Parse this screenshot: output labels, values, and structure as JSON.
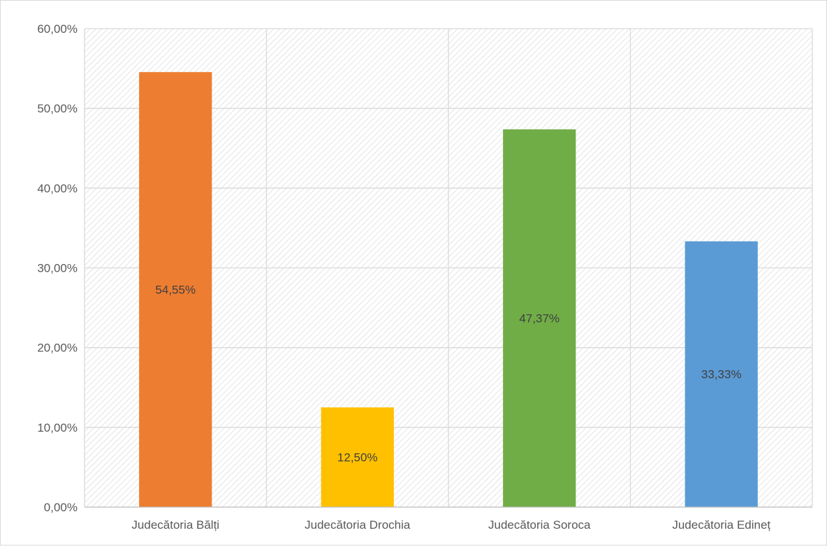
{
  "chart_data": {
    "type": "bar",
    "title": "",
    "xlabel": "",
    "ylabel": "",
    "categories": [
      "Judecătoria Bălți",
      "Judecătoria Drochia",
      "Judecătoria Soroca",
      "Judecătoria Edineț"
    ],
    "values": [
      54.55,
      12.5,
      47.37,
      33.33
    ],
    "value_labels": [
      "54,55%",
      "12,50%",
      "47,37%",
      "33,33%"
    ],
    "bar_colors": [
      "#ED7D31",
      "#FFC000",
      "#70AD47",
      "#5B9BD5"
    ],
    "ylim": [
      0,
      60
    ],
    "yticks": [
      0,
      10,
      20,
      30,
      40,
      50,
      60
    ],
    "ytick_labels": [
      "0,00%",
      "10,00%",
      "20,00%",
      "30,00%",
      "40,00%",
      "50,00%",
      "60,00%"
    ],
    "grid": true,
    "legend": "none",
    "plot_background": "hatched light gray diagonal pattern"
  }
}
